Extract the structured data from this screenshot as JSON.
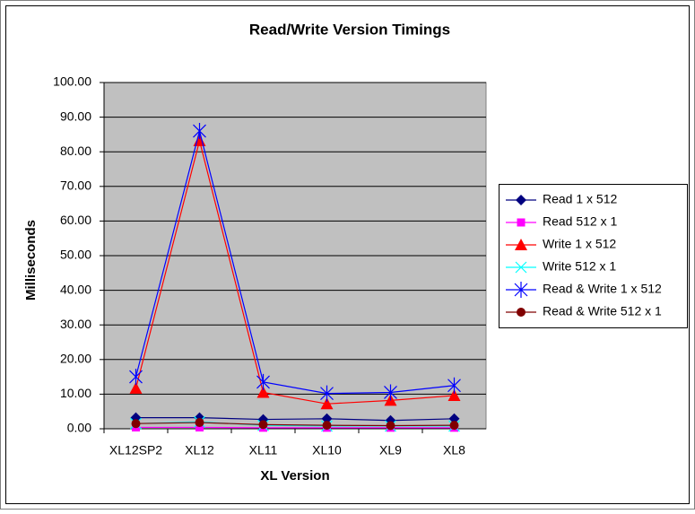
{
  "chart_data": {
    "type": "line",
    "title": "Read/Write Version Timings",
    "x_label": "XL Version",
    "y_label": "Milliseconds",
    "categories": [
      "XL12SP2",
      "XL12",
      "XL11",
      "XL10",
      "XL9",
      "XL8"
    ],
    "series": [
      {
        "name": "Read 1 x 512",
        "color": "#000080",
        "marker": "diamond",
        "values": [
          3.2,
          3.2,
          2.7,
          2.9,
          2.4,
          2.9
        ]
      },
      {
        "name": "Read 512 x 1",
        "color": "#ff00ff",
        "marker": "square",
        "values": [
          0.4,
          0.4,
          0.3,
          0.3,
          0.3,
          0.3
        ]
      },
      {
        "name": "Write 1 x 512",
        "color": "#ff0000",
        "marker": "triangle",
        "values": [
          11.7,
          83.2,
          10.5,
          7.2,
          8.2,
          9.6
        ]
      },
      {
        "name": "Write 512 x 1",
        "color": "#00ffff",
        "marker": "x",
        "values": [
          1.5,
          2.0,
          1.0,
          0.8,
          0.8,
          0.8
        ]
      },
      {
        "name": "Read & Write 1 x 512",
        "color": "#0000ff",
        "marker": "asterisk",
        "values": [
          15.0,
          86.0,
          13.5,
          10.2,
          10.5,
          12.5
        ]
      },
      {
        "name": "Read & Write 512 x 1",
        "color": "#800000",
        "marker": "circle",
        "values": [
          1.5,
          1.8,
          1.2,
          1.0,
          0.9,
          1.0
        ]
      }
    ],
    "ylim": [
      0,
      100
    ],
    "yticks": [
      {
        "value": 0,
        "label": "0.00"
      },
      {
        "value": 10,
        "label": "10.00"
      },
      {
        "value": 20,
        "label": "20.00"
      },
      {
        "value": 30,
        "label": "30.00"
      },
      {
        "value": 40,
        "label": "40.00"
      },
      {
        "value": 50,
        "label": "50.00"
      },
      {
        "value": 60,
        "label": "60.00"
      },
      {
        "value": 70,
        "label": "70.00"
      },
      {
        "value": 80,
        "label": "80.00"
      },
      {
        "value": 90,
        "label": "90.00"
      },
      {
        "value": 100,
        "label": "100.00"
      }
    ],
    "grid": true,
    "legend": "right"
  }
}
